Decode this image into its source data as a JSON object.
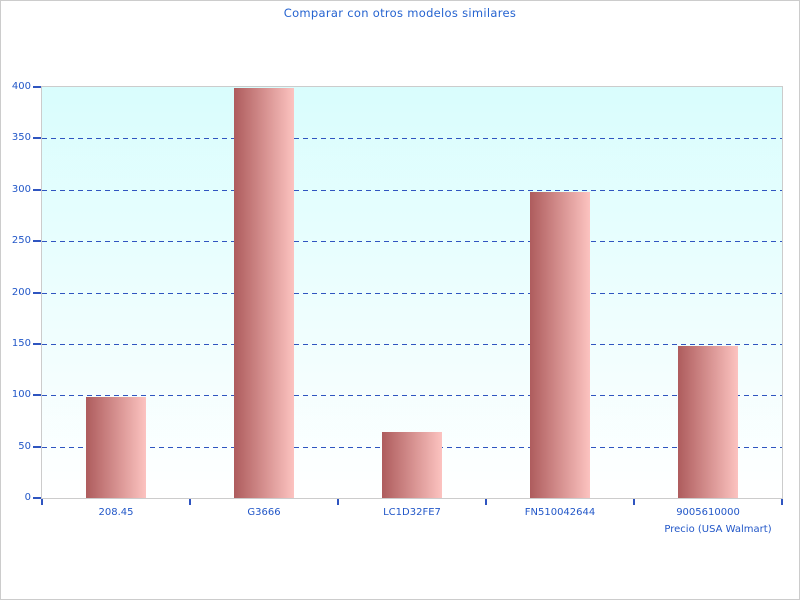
{
  "chart_data": {
    "type": "bar",
    "title": "Comparar con otros modelos similares",
    "categories": [
      "208.45",
      "G3666",
      "LC1D32FE7",
      "FN510042644",
      "9005610000"
    ],
    "values": [
      98,
      399,
      64,
      298,
      148
    ],
    "xlabel": "Precio (USA Walmart)",
    "ylabel": "",
    "ylim": [
      0,
      400
    ],
    "yticks": [
      0,
      50,
      100,
      150,
      200,
      250,
      300,
      350,
      400
    ],
    "grid": "horizontal-dashed",
    "legend": "none",
    "colors": {
      "title_text": "#2563d0",
      "axis_text": "#2257c8",
      "gridline": "#2f55c0",
      "tick": "#2f55c0",
      "bar_gradient_left": "#ae5c5d",
      "bar_gradient_right": "#fcc3c0",
      "plot_bg_top": "#d9fdfd",
      "plot_bg_bottom": "#ffffff",
      "axis_border": "#cccccc",
      "figure_bg": "#ffffff"
    }
  }
}
